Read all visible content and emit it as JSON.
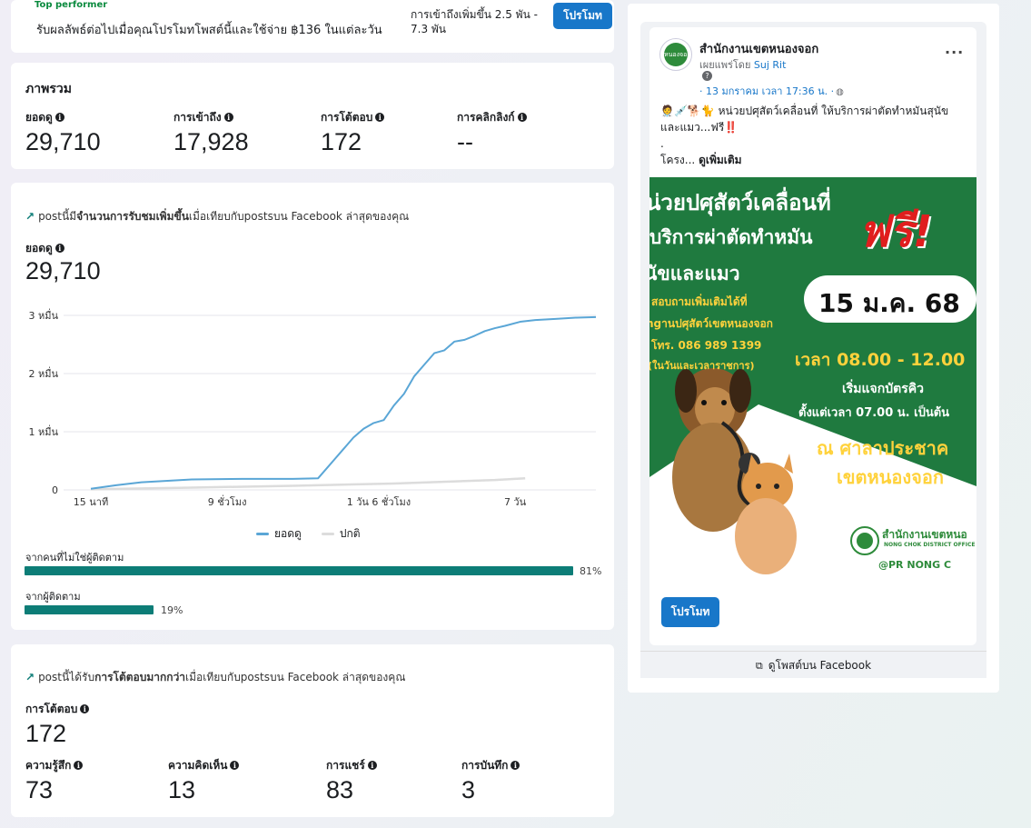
{
  "top_card": {
    "badge_label": "Top performer",
    "promo_text": "รับผลลัพธ์ต่อไปเมื่อคุณโปรโมทโพสต์นี้และใช้จ่าย ฿136 ในแต่ละวัน",
    "reach_text": "การเข้าถึงเพิ่มขึ้น 2.5 พัน - 7.3 พัน",
    "promote_label": "โปรโมท"
  },
  "overview": {
    "title": "ภาพรวม",
    "metrics": [
      {
        "label": "ยอดดู",
        "value": "29,710"
      },
      {
        "label": "การเข้าถึง",
        "value": "17,928"
      },
      {
        "label": "การโต้ตอบ",
        "value": "172"
      },
      {
        "label": "การคลิกลิงก์",
        "value": "--"
      }
    ]
  },
  "views_card": {
    "trend_prefix": "postนี้มี",
    "trend_bold": "จำนวนการรับชมเพิ่มขึ้น",
    "trend_suffix": "เมื่อเทียบกับpostsบน Facebook ล่าสุดของคุณ",
    "metric_label": "ยอดดู",
    "metric_value": "29,710",
    "legend": [
      {
        "name": "ยอดดู",
        "color": "#5aa6d6"
      },
      {
        "name": "ปกติ",
        "color": "#dcdcdc"
      }
    ],
    "audience": [
      {
        "label": "จากคนที่ไม่ใช่ผู้ติดตาม",
        "percent": 81,
        "percent_label": "81%"
      },
      {
        "label": "จากผู้ติดตาม",
        "percent": 19,
        "percent_label": "19%"
      }
    ]
  },
  "chart_data": {
    "type": "line",
    "x_tick_labels": [
      "15 นาที",
      "9 ชั่วโมง",
      "1 วัน 6 ชั่วโมง",
      "7 วัน"
    ],
    "y_tick_labels": [
      "0",
      "1 หมื่น",
      "2 หมื่น",
      "3 หมื่น"
    ],
    "ylim": [
      0,
      30000
    ],
    "grid": true,
    "legend_position": "bottom",
    "series": [
      {
        "name": "ยอดดู",
        "x": [
          0,
          0.05,
          0.1,
          0.2,
          0.3,
          0.4,
          0.45,
          0.48,
          0.5,
          0.52,
          0.54,
          0.56,
          0.58,
          0.6,
          0.62,
          0.64,
          0.66,
          0.68,
          0.7,
          0.72,
          0.74,
          0.76,
          0.78,
          0.8,
          0.82,
          0.85,
          0.88,
          0.92,
          0.96,
          1.0
        ],
        "values": [
          200,
          800,
          1300,
          1800,
          1900,
          1900,
          2000,
          5000,
          7000,
          9000,
          10500,
          11500,
          12000,
          14500,
          16500,
          19500,
          21500,
          23500,
          24000,
          25500,
          25800,
          26500,
          27300,
          27800,
          28200,
          28900,
          29200,
          29400,
          29600,
          29710
        ]
      },
      {
        "name": "ปกติ",
        "x": [
          0,
          0.2,
          0.4,
          0.6,
          0.8,
          0.86
        ],
        "values": [
          100,
          400,
          700,
          1100,
          1700,
          2000
        ]
      }
    ]
  },
  "interactions_card": {
    "trend_prefix": "postนี้ได้รับ",
    "trend_bold": "การโต้ตอบมากกว่า",
    "trend_suffix": "เมื่อเทียบกับpostsบน Facebook ล่าสุดของคุณ",
    "metric_label": "การโต้ตอบ",
    "metric_value": "172",
    "breakdown": [
      {
        "label": "ความรู้สึก",
        "value": "73"
      },
      {
        "label": "ความคิดเห็น",
        "value": "13"
      },
      {
        "label": "การแชร์",
        "value": "83"
      },
      {
        "label": "การบันทึก",
        "value": "3"
      }
    ]
  },
  "post": {
    "page_name": "สำนักงานเขตหนองจอก",
    "avatar_text": "หนองจอก",
    "published_by_prefix": "เผยแพร่โดย",
    "published_by_name": "Suj Rit",
    "date": "· 13 มกราคม เวลา 17:36 น. ·",
    "text_line1": "🧑‍⚕️💉🐕🐈 หน่วยปศุสัตว์เคลื่อนที่ ให้บริการผ่าตัดทำหมันสุนัข",
    "text_line2": "และแมว...ฟรี‼️",
    "text_line3": ".",
    "text_line4": "โครง...",
    "see_more": "ดูเพิ่มเติม",
    "image": {
      "l1": "น่วยปศุสัตว์เคลื่อนที่",
      "l2": "บริการผ่าตัดทำหมัน",
      "l3": "นัขและแมว",
      "free": "ฟรี!",
      "date_badge": "15 ม.ค. 68",
      "l4": "สอบถามเพิ่มเติมได้ที่",
      "l5": "ngานปศุสัตว์เขตหนองจอก",
      "l6": "โทร. 086 989 1399",
      "l7": "(ในวันและเวลาราชการ)",
      "time": "เวลา 08.00 - 12.00",
      "l8": "เริ่มแจกบัตรคิว",
      "l9": "ตั้งแต่เวลา 07.00 น. เป็นต้น",
      "l10": "ณ ศาลาประชาค",
      "l11": "เขตหนองจอก",
      "org": "สำนักงานเขตหนอ",
      "org_en": "NONG CHOK DISTRICT OFFICE",
      "handle": "@PR NONG C"
    },
    "promote_label": "โปรโมท",
    "view_on_fb": "ดูโพสต์บน Facebook"
  }
}
